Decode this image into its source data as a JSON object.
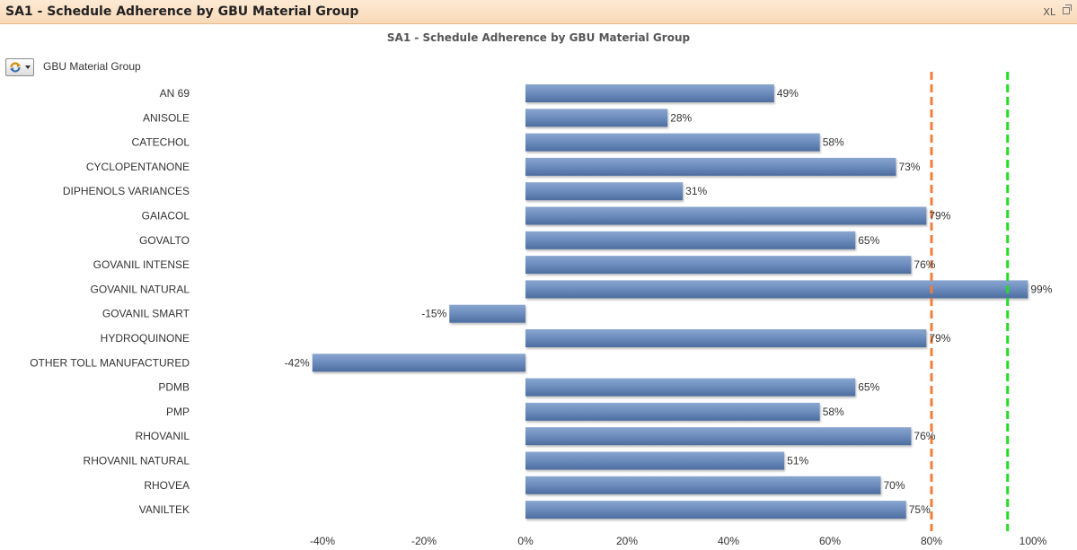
{
  "caption": {
    "title": "SA1 - Schedule Adherence by GBU Material Group",
    "xl_label": "XL",
    "restore_icon": "restore-window-icon"
  },
  "dimension": {
    "label": "GBU Material Group",
    "icon": "cycle-group-icon"
  },
  "chart_data": {
    "type": "bar",
    "orientation": "horizontal",
    "title": "SA1 - Schedule Adherence by GBU Material Group",
    "categories": [
      "AN 69",
      "ANISOLE",
      "CATECHOL",
      "CYCLOPENTANONE",
      "DIPHENOLS VARIANCES",
      "GAIACOL",
      "GOVALTO",
      "GOVANIL INTENSE",
      "GOVANIL NATURAL",
      "GOVANIL SMART",
      "HYDROQUINONE",
      "OTHER TOLL MANUFACTURED",
      "PDMB",
      "PMP",
      "RHOVANIL",
      "RHOVANIL NATURAL",
      "RHOVEA",
      "VANILTEK"
    ],
    "values": [
      49,
      28,
      58,
      73,
      31,
      79,
      65,
      76,
      99,
      -15,
      79,
      -42,
      65,
      58,
      76,
      51,
      70,
      75
    ],
    "data_labels": [
      "49%",
      "28%",
      "58%",
      "73%",
      "31%",
      "79%",
      "65%",
      "76%",
      "99%",
      "-15%",
      "79%",
      "-42%",
      "65%",
      "58%",
      "76%",
      "51%",
      "70%",
      "75%"
    ],
    "xlim": [
      -40,
      100
    ],
    "ticks": [
      -40,
      -20,
      0,
      20,
      40,
      60,
      80,
      100
    ],
    "tick_labels": [
      "-40%",
      "-20%",
      "0%",
      "20%",
      "40%",
      "60%",
      "80%",
      "100%"
    ],
    "reference_lines": [
      {
        "value": 80,
        "color": "#f07f3c",
        "style": "dashed"
      },
      {
        "value": 95,
        "color": "#22dd22",
        "style": "dashed"
      }
    ],
    "bar_color": "#6b8cbd",
    "grid": false
  }
}
